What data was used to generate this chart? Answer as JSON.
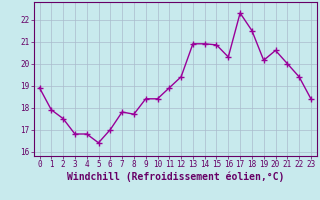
{
  "x": [
    0,
    1,
    2,
    3,
    4,
    5,
    6,
    7,
    8,
    9,
    10,
    11,
    12,
    13,
    14,
    15,
    16,
    17,
    18,
    19,
    20,
    21,
    22,
    23
  ],
  "y": [
    18.9,
    17.9,
    17.5,
    16.8,
    16.8,
    16.4,
    17.0,
    17.8,
    17.7,
    18.4,
    18.4,
    18.9,
    19.4,
    20.9,
    20.9,
    20.85,
    20.3,
    22.3,
    21.5,
    20.15,
    20.6,
    20.0,
    19.4,
    18.4
  ],
  "line_color": "#990099",
  "marker": "+",
  "marker_size": 4,
  "bg_color": "#c8eaed",
  "grid_color": "#aabbcc",
  "xlabel": "Windchill (Refroidissement éolien,°C)",
  "ylim": [
    15.8,
    22.8
  ],
  "xlim": [
    -0.5,
    23.5
  ],
  "yticks": [
    16,
    17,
    18,
    19,
    20,
    21,
    22
  ],
  "xticks": [
    0,
    1,
    2,
    3,
    4,
    5,
    6,
    7,
    8,
    9,
    10,
    11,
    12,
    13,
    14,
    15,
    16,
    17,
    18,
    19,
    20,
    21,
    22,
    23
  ],
  "tick_fontsize": 5.5,
  "xlabel_fontsize": 7.0,
  "line_width": 1.0,
  "spine_color": "#660066"
}
